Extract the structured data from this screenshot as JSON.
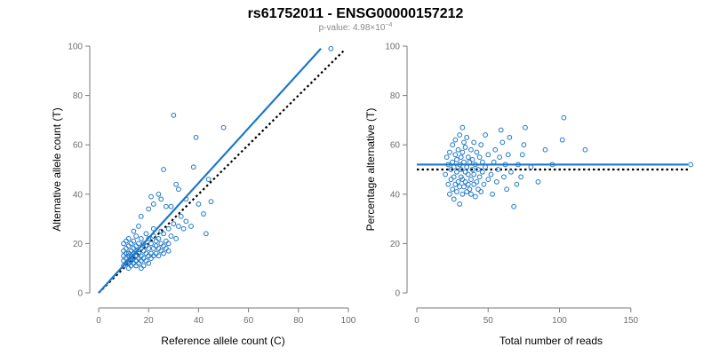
{
  "figure": {
    "title": "rs61752011 - ENSG00000157212",
    "subtitle_prefix": "p-value: 4.98×10",
    "subtitle_exponent": "−4",
    "point_color": "#1f78c8",
    "fit_color": "#1f78c8",
    "reference_color": "#000000"
  },
  "chart_data": [
    {
      "type": "scatter",
      "title": "",
      "xlabel": "Reference allele count (C)",
      "ylabel": "Alternative allele count (T)",
      "xlim": [
        0,
        100
      ],
      "ylim": [
        0,
        100
      ],
      "xticks": [
        0,
        20,
        40,
        60,
        80,
        100
      ],
      "yticks": [
        0,
        20,
        40,
        60,
        80,
        100
      ],
      "grid": false,
      "legend": "none",
      "fit_line": {
        "style": "solid",
        "x": [
          0,
          89
        ],
        "y": [
          0,
          99
        ]
      },
      "reference_line": {
        "style": "dotted",
        "x": [
          0,
          98
        ],
        "y": [
          0,
          98
        ]
      },
      "points": [
        [
          10,
          11
        ],
        [
          10,
          13
        ],
        [
          10,
          15
        ],
        [
          10,
          17
        ],
        [
          10,
          20
        ],
        [
          11,
          12
        ],
        [
          11,
          14
        ],
        [
          11,
          16
        ],
        [
          11,
          18
        ],
        [
          11,
          21
        ],
        [
          12,
          10
        ],
        [
          12,
          12
        ],
        [
          12,
          13
        ],
        [
          12,
          15
        ],
        [
          12,
          16
        ],
        [
          12,
          19
        ],
        [
          12,
          22
        ],
        [
          13,
          11
        ],
        [
          13,
          13
        ],
        [
          13,
          14
        ],
        [
          13,
          15
        ],
        [
          13,
          17
        ],
        [
          13,
          20
        ],
        [
          14,
          12
        ],
        [
          14,
          14
        ],
        [
          14,
          16
        ],
        [
          14,
          18
        ],
        [
          14,
          21
        ],
        [
          14,
          25
        ],
        [
          15,
          11
        ],
        [
          15,
          13
        ],
        [
          15,
          15
        ],
        [
          15,
          17
        ],
        [
          15,
          19
        ],
        [
          15,
          23
        ],
        [
          16,
          12
        ],
        [
          16,
          14
        ],
        [
          16,
          16
        ],
        [
          16,
          20
        ],
        [
          16,
          27
        ],
        [
          17,
          10
        ],
        [
          17,
          13
        ],
        [
          17,
          15
        ],
        [
          17,
          18
        ],
        [
          17,
          22
        ],
        [
          17,
          31
        ],
        [
          18,
          11
        ],
        [
          18,
          14
        ],
        [
          18,
          17
        ],
        [
          18,
          20
        ],
        [
          19,
          13
        ],
        [
          19,
          16
        ],
        [
          19,
          19
        ],
        [
          19,
          24
        ],
        [
          20,
          12
        ],
        [
          20,
          15
        ],
        [
          20,
          18
        ],
        [
          20,
          22
        ],
        [
          20,
          34
        ],
        [
          21,
          14
        ],
        [
          21,
          16
        ],
        [
          21,
          20
        ],
        [
          21,
          39
        ],
        [
          22,
          15
        ],
        [
          22,
          18
        ],
        [
          22,
          23
        ],
        [
          22,
          26
        ],
        [
          22,
          36
        ],
        [
          23,
          16
        ],
        [
          23,
          19
        ],
        [
          23,
          21
        ],
        [
          24,
          15
        ],
        [
          24,
          18
        ],
        [
          24,
          22
        ],
        [
          24,
          40
        ],
        [
          25,
          17
        ],
        [
          25,
          20
        ],
        [
          25,
          25
        ],
        [
          25,
          38
        ],
        [
          26,
          16
        ],
        [
          26,
          19
        ],
        [
          26,
          24
        ],
        [
          26,
          50
        ],
        [
          27,
          18
        ],
        [
          27,
          21
        ],
        [
          27,
          35
        ],
        [
          28,
          17
        ],
        [
          28,
          20
        ],
        [
          28,
          26
        ],
        [
          29,
          23
        ],
        [
          29,
          35
        ],
        [
          30,
          72
        ],
        [
          30,
          28
        ],
        [
          31,
          44
        ],
        [
          31,
          22
        ],
        [
          32,
          27
        ],
        [
          32,
          42
        ],
        [
          33,
          31
        ],
        [
          34,
          26
        ],
        [
          35,
          29
        ],
        [
          35,
          38
        ],
        [
          37,
          27
        ],
        [
          38,
          51
        ],
        [
          39,
          63
        ],
        [
          40,
          36
        ],
        [
          42,
          32
        ],
        [
          43,
          24
        ],
        [
          44,
          46
        ],
        [
          45,
          37
        ],
        [
          50,
          67
        ],
        [
          93,
          99
        ]
      ]
    },
    {
      "type": "scatter",
      "title": "",
      "xlabel": "Total number of reads",
      "ylabel": "Percentage alternative (T)",
      "xlim": [
        0,
        190
      ],
      "ylim": [
        0,
        100
      ],
      "xticks": [
        0,
        50,
        100,
        150
      ],
      "yticks": [
        0,
        20,
        40,
        60,
        80,
        100
      ],
      "grid": false,
      "legend": "none",
      "fit_line": {
        "style": "solid",
        "y": 52
      },
      "reference_line": {
        "style": "dotted",
        "y": 50
      },
      "points": [
        [
          20,
          48
        ],
        [
          21,
          55
        ],
        [
          22,
          44
        ],
        [
          22,
          52
        ],
        [
          23,
          40
        ],
        [
          23,
          57
        ],
        [
          24,
          46
        ],
        [
          24,
          50
        ],
        [
          25,
          42
        ],
        [
          25,
          53
        ],
        [
          25,
          60
        ],
        [
          26,
          38
        ],
        [
          26,
          47
        ],
        [
          26,
          51
        ],
        [
          27,
          44
        ],
        [
          27,
          56
        ],
        [
          27,
          62
        ],
        [
          28,
          41
        ],
        [
          28,
          49
        ],
        [
          28,
          54
        ],
        [
          29,
          45
        ],
        [
          29,
          58
        ],
        [
          30,
          36
        ],
        [
          30,
          43
        ],
        [
          30,
          52
        ],
        [
          30,
          64
        ],
        [
          31,
          47
        ],
        [
          31,
          50
        ],
        [
          31,
          55
        ],
        [
          32,
          40
        ],
        [
          32,
          46
        ],
        [
          32,
          57
        ],
        [
          32,
          67
        ],
        [
          33,
          43
        ],
        [
          33,
          53
        ],
        [
          33,
          61
        ],
        [
          34,
          45
        ],
        [
          34,
          49
        ],
        [
          34,
          59
        ],
        [
          35,
          41
        ],
        [
          35,
          51
        ],
        [
          35,
          63
        ],
        [
          36,
          44
        ],
        [
          36,
          48
        ],
        [
          36,
          55
        ],
        [
          37,
          42
        ],
        [
          37,
          53
        ],
        [
          38,
          40
        ],
        [
          38,
          46
        ],
        [
          38,
          58
        ],
        [
          39,
          50
        ],
        [
          39,
          54
        ],
        [
          40,
          44
        ],
        [
          40,
          48
        ],
        [
          40,
          61
        ],
        [
          41,
          39
        ],
        [
          41,
          52
        ],
        [
          42,
          45
        ],
        [
          42,
          57
        ],
        [
          43,
          42
        ],
        [
          43,
          50
        ],
        [
          44,
          47
        ],
        [
          44,
          55
        ],
        [
          45,
          41
        ],
        [
          45,
          60
        ],
        [
          46,
          49
        ],
        [
          46,
          53
        ],
        [
          47,
          44
        ],
        [
          48,
          51
        ],
        [
          48,
          64
        ],
        [
          50,
          46
        ],
        [
          50,
          56
        ],
        [
          52,
          48
        ],
        [
          53,
          40
        ],
        [
          54,
          53
        ],
        [
          55,
          58
        ],
        [
          56,
          45
        ],
        [
          57,
          50
        ],
        [
          58,
          55
        ],
        [
          59,
          66
        ],
        [
          60,
          61
        ],
        [
          61,
          47
        ],
        [
          62,
          52
        ],
        [
          63,
          42
        ],
        [
          64,
          56
        ],
        [
          65,
          63
        ],
        [
          66,
          49
        ],
        [
          68,
          35
        ],
        [
          70,
          44
        ],
        [
          71,
          52
        ],
        [
          73,
          47
        ],
        [
          74,
          56
        ],
        [
          75,
          60
        ],
        [
          76,
          67
        ],
        [
          80,
          51
        ],
        [
          85,
          45
        ],
        [
          90,
          58
        ],
        [
          95,
          52
        ],
        [
          102,
          62
        ],
        [
          103,
          71
        ],
        [
          118,
          58
        ],
        [
          192,
          52
        ]
      ]
    }
  ]
}
